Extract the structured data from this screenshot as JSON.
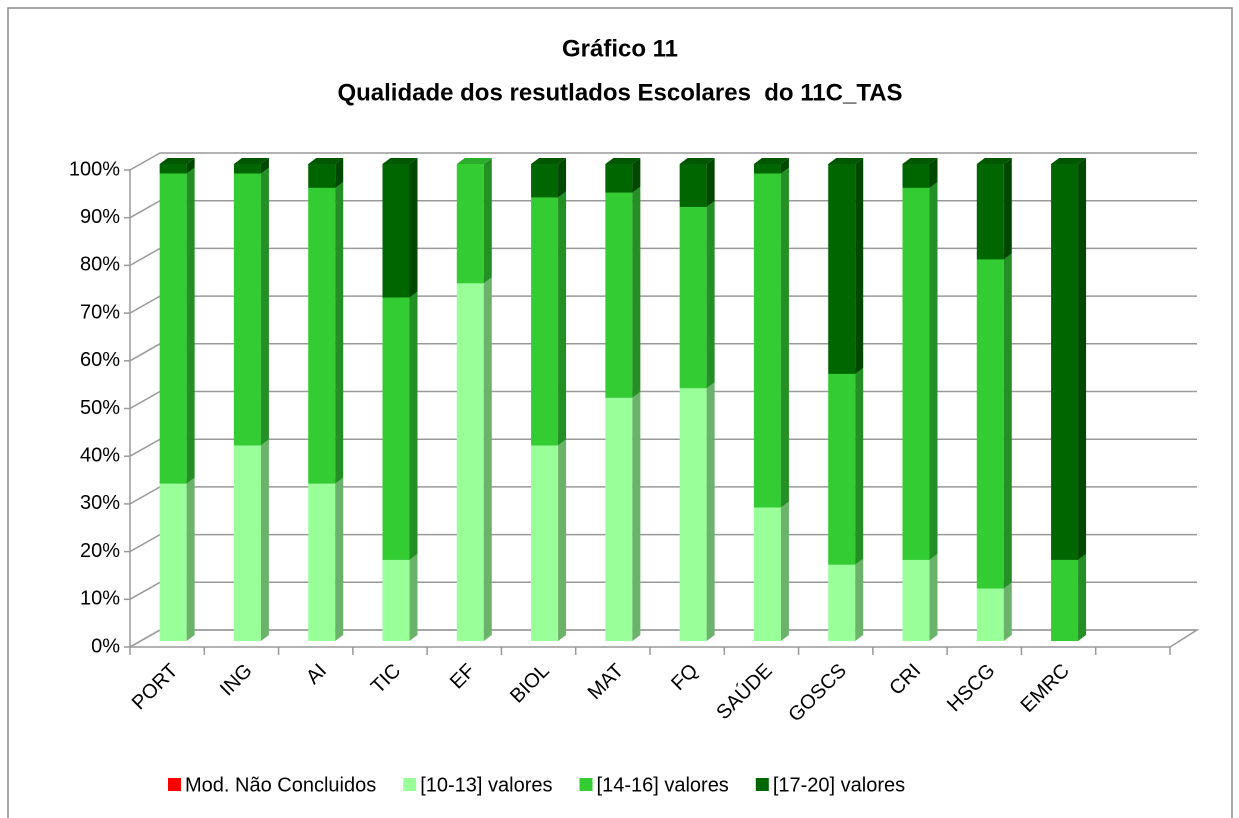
{
  "chart_data": {
    "type": "bar3d_stacked",
    "title": [
      "Gráfico 11",
      "Qualidade dos resutlados Escolares  do 11C_TAS"
    ],
    "categories": [
      "PORT",
      "ING",
      "AI",
      "TIC",
      "EF",
      "BIOL",
      "MAT",
      "FQ",
      "SAÚDE",
      "GOSCS",
      "CRI",
      "HSCG",
      "EMRC"
    ],
    "series": [
      {
        "name": "Mod. Não Concluidos",
        "color": "#ff0000",
        "values": [
          0,
          0,
          0,
          0,
          0,
          0,
          0,
          0,
          0,
          0,
          0,
          0,
          0
        ]
      },
      {
        "name": "[10-13] valores",
        "color": "#99ff99",
        "values": [
          33,
          41,
          33,
          17,
          75,
          41,
          51,
          53,
          28,
          16,
          17,
          11,
          0
        ]
      },
      {
        "name": "[14-16] valores",
        "color": "#33cc33",
        "values": [
          65,
          57,
          62,
          55,
          25,
          52,
          43,
          38,
          70,
          40,
          78,
          69,
          17
        ]
      },
      {
        "name": "[17-20] valores",
        "color": "#006600",
        "values": [
          2,
          2,
          5,
          28,
          0,
          7,
          6,
          9,
          2,
          44,
          5,
          20,
          83
        ]
      }
    ],
    "ylim": [
      0,
      100
    ],
    "yticks": [
      {
        "value": 0,
        "label": "0%"
      },
      {
        "value": 10,
        "label": "10%"
      },
      {
        "value": 20,
        "label": "20%"
      },
      {
        "value": 30,
        "label": "30%"
      },
      {
        "value": 40,
        "label": "40%"
      },
      {
        "value": 50,
        "label": "50%"
      },
      {
        "value": 60,
        "label": "60%"
      },
      {
        "value": 70,
        "label": "70%"
      },
      {
        "value": 80,
        "label": "80%"
      },
      {
        "value": 90,
        "label": "90%"
      },
      {
        "value": 100,
        "label": "100%"
      }
    ],
    "grid": true,
    "legend": "bottom"
  }
}
